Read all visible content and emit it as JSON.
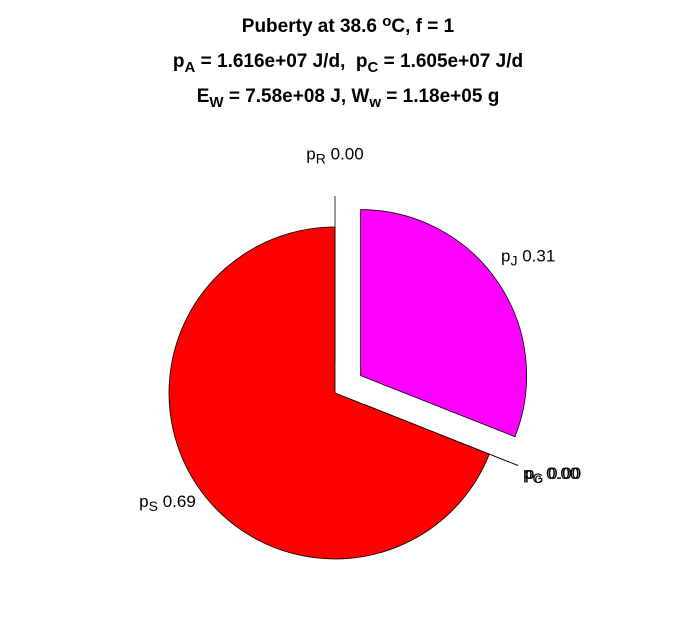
{
  "chart_data": {
    "type": "pie",
    "title": [
      [
        {
          "t": "Puberty at 38.6 "
        },
        {
          "t": "o",
          "s": "sup"
        },
        {
          "t": "C, f = 1"
        }
      ],
      [
        {
          "t": "p"
        },
        {
          "t": "A",
          "s": "sub"
        },
        {
          "t": " = 1.616e+07 J/d,  p"
        },
        {
          "t": "C",
          "s": "sub"
        },
        {
          "t": " = 1.605e+07 J/d"
        }
      ],
      [
        {
          "t": "E"
        },
        {
          "t": "W",
          "s": "sub"
        },
        {
          "t": " = 7.58e+08 J, W"
        },
        {
          "t": "w",
          "s": "sub"
        },
        {
          "t": " = 1.18e+05 g"
        }
      ]
    ],
    "slices": [
      {
        "symbol": "p",
        "sub": "R",
        "value": 0,
        "value_label": "0.00",
        "explode": true
      },
      {
        "symbol": "p",
        "sub": "J",
        "value": 0.31,
        "value_label": "0.31",
        "color": "#ff00ff",
        "explode": true
      },
      {
        "symbol": "p",
        "sub": "c",
        "value": 0,
        "value_label": "0.00",
        "explode": true
      },
      {
        "symbol": "p",
        "sub": "G",
        "value": 0,
        "value_label": "0.00",
        "explode": true
      },
      {
        "symbol": "p",
        "sub": "S",
        "value": 0.69,
        "value_label": "0.69",
        "color": "#ff0000",
        "explode": false
      }
    ]
  }
}
